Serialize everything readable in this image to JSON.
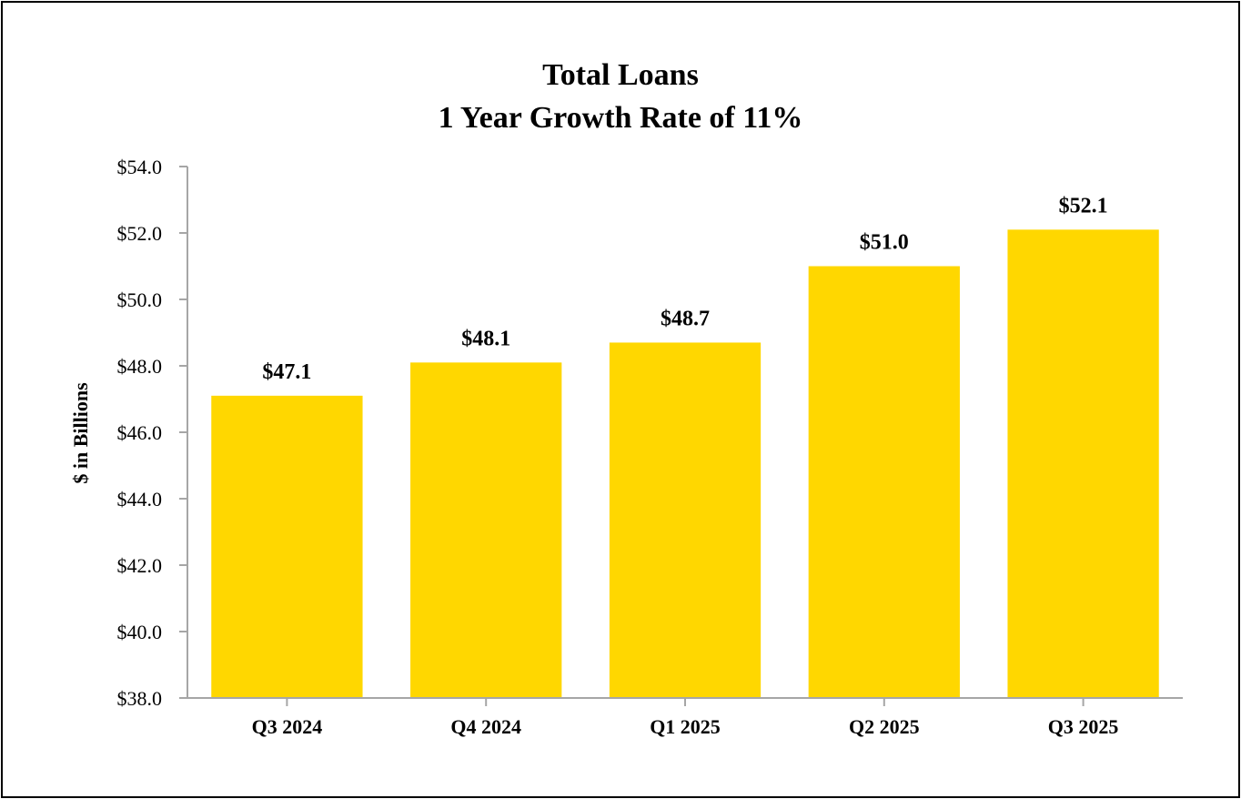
{
  "chart_data": {
    "type": "bar",
    "title": "Total Loans",
    "subtitle": "1 Year Growth Rate of 11%",
    "xlabel": "",
    "ylabel": "$ in Billions",
    "categories": [
      "Q3 2024",
      "Q4 2024",
      "Q1 2025",
      "Q2 2025",
      "Q3 2025"
    ],
    "values": [
      47.1,
      48.1,
      48.7,
      51.0,
      52.1
    ],
    "data_labels": [
      "$47.1",
      "$48.1",
      "$48.7",
      "$51.0",
      "$52.1"
    ],
    "ylim": [
      38.0,
      54.0
    ],
    "yticks": [
      38.0,
      40.0,
      42.0,
      44.0,
      46.0,
      48.0,
      50.0,
      52.0,
      54.0
    ],
    "ytick_labels": [
      "$38.0",
      "$40.0",
      "$42.0",
      "$44.0",
      "$46.0",
      "$48.0",
      "$50.0",
      "$52.0",
      "$54.0"
    ],
    "grid": false,
    "legend": "none",
    "colors": {
      "bar": "#FFD700",
      "axis": "#A6A6A6",
      "text": "#000000",
      "border": "#000000"
    }
  }
}
